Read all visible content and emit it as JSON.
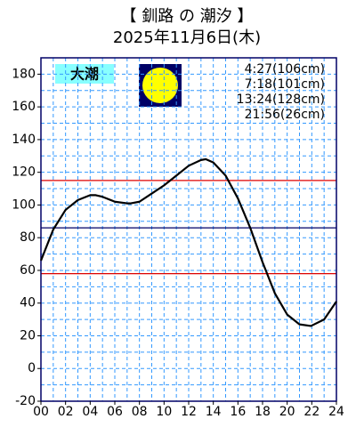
{
  "chart_data": {
    "type": "line",
    "title": "【 釧路 の 潮汐 】",
    "subtitle": "2025年11月6日(木)",
    "tide_name": "大潮",
    "annotations": [
      "4:27(106cm)",
      "7:18(101cm)",
      "13:24(128cm)",
      "21:56(26cm)"
    ],
    "x": [
      0,
      1,
      2,
      3,
      4,
      4.45,
      5,
      6,
      7,
      7.3,
      8,
      9,
      10,
      11,
      12,
      13,
      13.4,
      14,
      15,
      16,
      17,
      18,
      19,
      20,
      21,
      21.93,
      23,
      24
    ],
    "series": [
      {
        "color": "#000000",
        "values": [
          66,
          85,
          97,
          103,
          106,
          106,
          105,
          102,
          101,
          101,
          102,
          107,
          112,
          118,
          124,
          127.5,
          128,
          126,
          118,
          104,
          86,
          65,
          46,
          33,
          27,
          26,
          30,
          41
        ]
      }
    ],
    "xlim": [
      0,
      24
    ],
    "ylim": [
      -20,
      190
    ],
    "xticks": [
      {
        "value": 0,
        "label": "00"
      },
      {
        "value": 2,
        "label": "02"
      },
      {
        "value": 4,
        "label": "04"
      },
      {
        "value": 6,
        "label": "06"
      },
      {
        "value": 8,
        "label": "08"
      },
      {
        "value": 10,
        "label": "10"
      },
      {
        "value": 12,
        "label": "12"
      },
      {
        "value": 14,
        "label": "14"
      },
      {
        "value": 16,
        "label": "16"
      },
      {
        "value": 18,
        "label": "18"
      },
      {
        "value": 20,
        "label": "20"
      },
      {
        "value": 22,
        "label": "22"
      },
      {
        "value": 24,
        "label": "24"
      }
    ],
    "yticks": [
      -20,
      0,
      20,
      40,
      60,
      80,
      100,
      120,
      140,
      160,
      180
    ],
    "xgrid": [
      1,
      2,
      3,
      4,
      5,
      6,
      7,
      8,
      9,
      10,
      11,
      12,
      13,
      14,
      15,
      16,
      17,
      18,
      19,
      20,
      21,
      22,
      23
    ],
    "ygrid": [
      -10,
      0,
      10,
      20,
      30,
      40,
      50,
      60,
      70,
      80,
      90,
      100,
      110,
      120,
      130,
      140,
      150,
      160,
      170,
      180
    ],
    "grid_color": "#3399ff",
    "reference_lines": [
      {
        "value": 115,
        "color": "#dd0000"
      },
      {
        "value": 86,
        "color": "#000066"
      },
      {
        "value": 58,
        "color": "#dd0000"
      }
    ]
  }
}
